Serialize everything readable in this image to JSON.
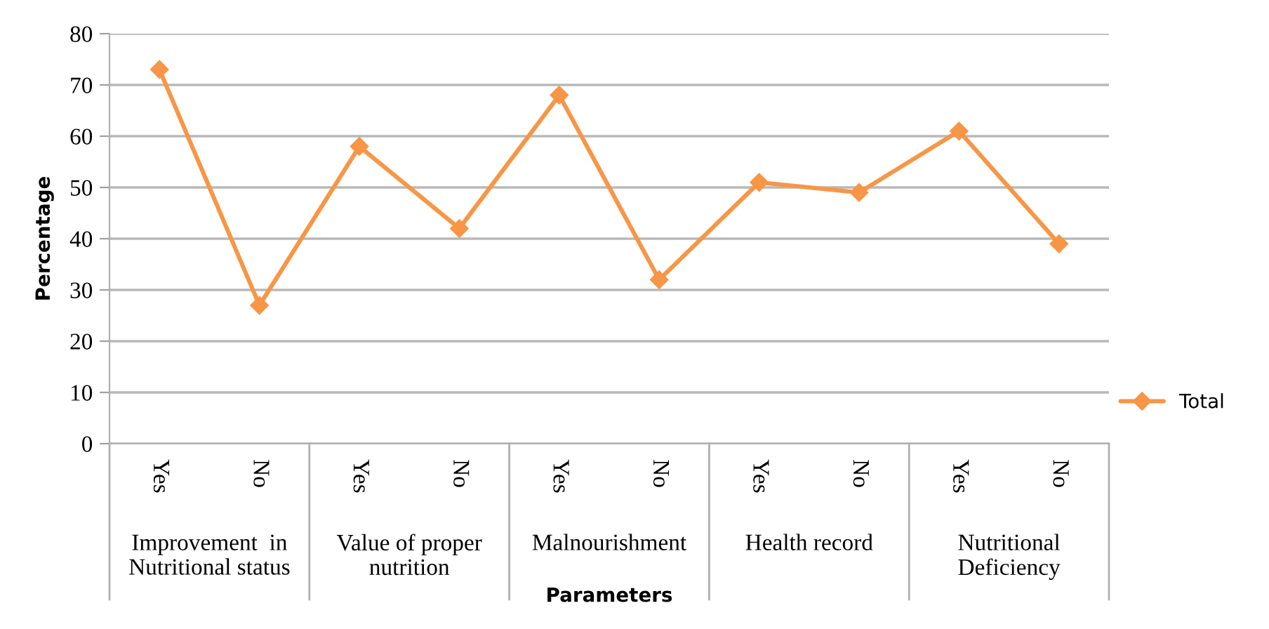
{
  "chart_data": {
    "type": "line",
    "xlabel": "Parameters",
    "ylabel": "Percentage",
    "categories": [
      "Yes",
      "No",
      "Yes",
      "No",
      "Yes",
      "No",
      "Yes",
      "No",
      "Yes",
      "No"
    ],
    "series": [
      {
        "name": "Total",
        "color": "#f79646",
        "values": [
          73,
          27,
          58,
          42,
          68,
          32,
          51,
          49,
          61,
          39
        ]
      }
    ],
    "annotations": [
      "Improvement  in\nNutritional status",
      "Value of proper\nnutrition",
      "Malnourishment",
      "Health record",
      "Nutritional\nDeficiency"
    ],
    "ylim": [
      0,
      80
    ],
    "yticks": [
      0,
      10,
      20,
      30,
      40,
      50,
      60,
      70,
      80
    ],
    "grid": "y",
    "legend": "right",
    "marker": "diamond",
    "line_style": "solid"
  }
}
